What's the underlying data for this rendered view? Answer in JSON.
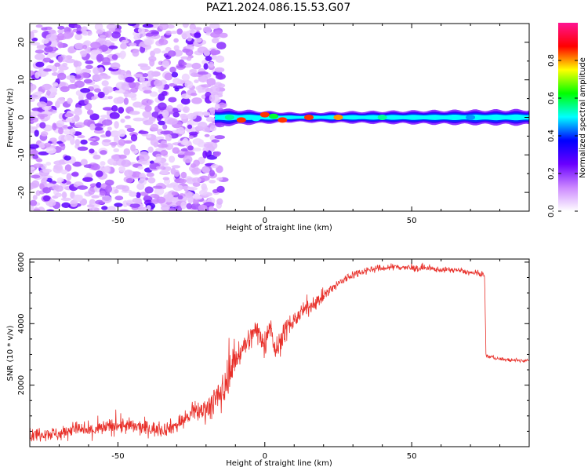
{
  "title": "PAZ1.2024.086.15.53.G07",
  "chart_data": [
    {
      "type": "heatmap",
      "xlabel": "Height of straight line (km)",
      "ylabel": "Frequency (Hz)",
      "xlim": [
        -80,
        90
      ],
      "ylim": [
        -25,
        25
      ],
      "x_ticks": [
        -50,
        0,
        50
      ],
      "y_ticks": [
        -20,
        -10,
        0,
        10,
        20
      ],
      "colorbar": {
        "label": "Normalized spectral amplitude",
        "range": [
          0,
          1
        ],
        "ticks": [
          0.0,
          0.2,
          0.4,
          0.6,
          0.8
        ],
        "colors": [
          "#ffffff",
          "#cc88ff",
          "#6a00ff",
          "#0000ff",
          "#00ffff",
          "#00ff00",
          "#ffff00",
          "#ff0000",
          "#ff1493"
        ]
      },
      "noise_region": {
        "x_start": -80,
        "x_end": -17,
        "y_min": -25,
        "y_max": 25
      },
      "signal_band": {
        "x_start": -17,
        "x_end": 90,
        "center_frequency": 0,
        "half_width_hz": [
          {
            "x": -16,
            "w": 2.2
          },
          {
            "x": 10,
            "w": 1.2
          },
          {
            "x": 30,
            "w": 1.5
          },
          {
            "x": 60,
            "w": 1.8
          },
          {
            "x": 90,
            "w": 2.0
          }
        ],
        "peaks": [
          {
            "x": -12,
            "y": 0.0,
            "amplitude": 0.55
          },
          {
            "x": -8,
            "y": -0.7,
            "amplitude": 0.85
          },
          {
            "x": -3,
            "y": -0.3,
            "amplitude": 0.5
          },
          {
            "x": 0,
            "y": 0.7,
            "amplitude": 0.85
          },
          {
            "x": 3,
            "y": 0.3,
            "amplitude": 0.6
          },
          {
            "x": 6,
            "y": -0.7,
            "amplitude": 0.85
          },
          {
            "x": 15,
            "y": 0.0,
            "amplitude": 0.85
          },
          {
            "x": 25,
            "y": 0.0,
            "amplitude": 0.8
          },
          {
            "x": 40,
            "y": 0.0,
            "amplitude": 0.55
          },
          {
            "x": 70,
            "y": 0.0,
            "amplitude": 0.45
          }
        ]
      }
    },
    {
      "type": "line",
      "xlabel": "Height of straight line (km)",
      "ylabel": "SNR (10 * v/v)",
      "xlim": [
        -80,
        90
      ],
      "ylim": [
        0,
        6100
      ],
      "x_ticks": [
        -50,
        0,
        50
      ],
      "y_ticks": [
        2000,
        4000,
        6000
      ],
      "series": [
        {
          "color": "#e8302a",
          "x": [
            -80,
            -75,
            -70,
            -65,
            -60,
            -55,
            -50,
            -45,
            -40,
            -35,
            -30,
            -25,
            -22,
            -20,
            -18,
            -16,
            -14,
            -12,
            -10,
            -8,
            -5,
            -3,
            -1,
            0,
            1,
            2,
            3,
            4,
            6,
            8,
            10,
            13,
            16,
            20,
            25,
            30,
            35,
            40,
            45,
            50,
            55,
            60,
            65,
            70,
            74.8,
            75.3,
            80,
            85,
            90
          ],
          "y": [
            350,
            450,
            400,
            600,
            500,
            600,
            700,
            650,
            600,
            550,
            700,
            1050,
            1150,
            1250,
            1400,
            1600,
            1800,
            2500,
            2850,
            3150,
            3500,
            3800,
            3600,
            3200,
            3800,
            4100,
            3300,
            3100,
            3600,
            3900,
            4100,
            4400,
            4600,
            4900,
            5300,
            5600,
            5750,
            5800,
            5850,
            5800,
            5800,
            5750,
            5750,
            5650,
            5600,
            2950,
            2850,
            2800,
            2800
          ],
          "noise_amplitude": [
            400,
            400,
            400,
            400,
            450,
            450,
            500,
            450,
            450,
            400,
            450,
            500,
            600,
            700,
            900,
            1000,
            1100,
            1000,
            900,
            800,
            700,
            700,
            800,
            900,
            800,
            700,
            800,
            800,
            700,
            600,
            500,
            400,
            400,
            350,
            300,
            250,
            200,
            200,
            200,
            200,
            180,
            150,
            150,
            150,
            150,
            100,
            100,
            100,
            100
          ]
        }
      ]
    }
  ]
}
